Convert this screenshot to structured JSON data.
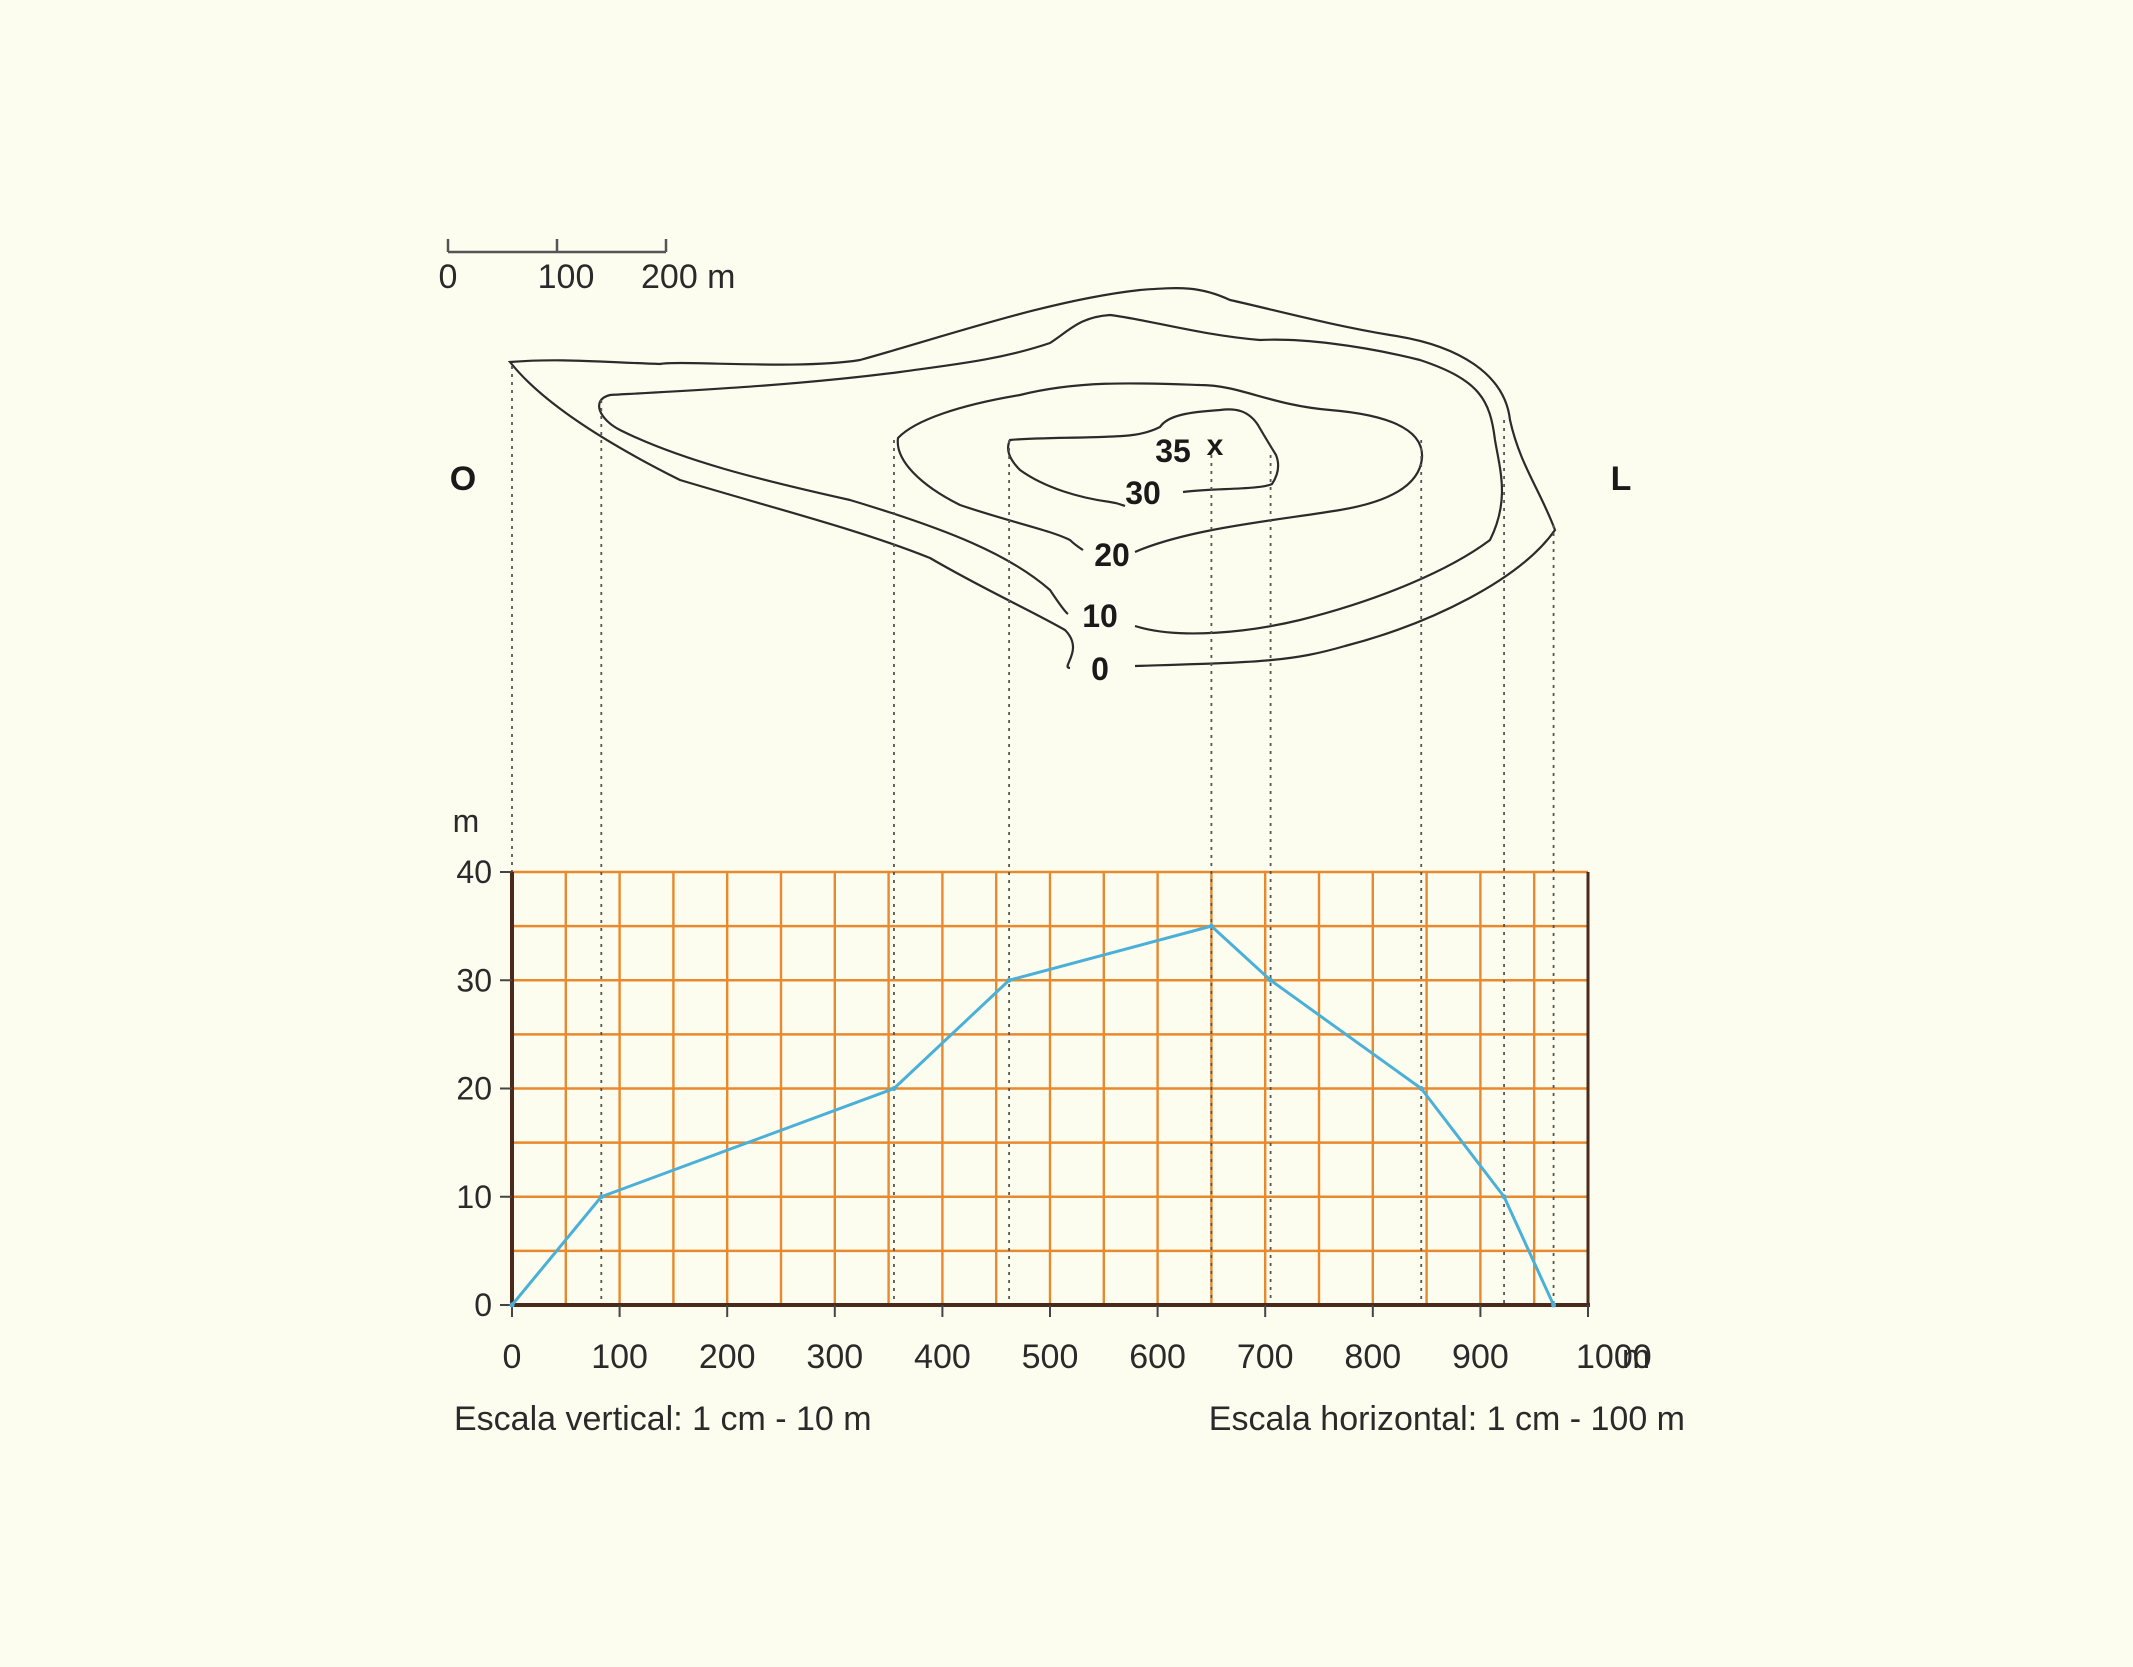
{
  "scale_bar": {
    "ticks": [
      "0",
      "100",
      "200 m"
    ]
  },
  "map": {
    "west_label": "O",
    "east_label": "L",
    "summit_label": "35",
    "summit_mark": "x",
    "contour_labels": [
      "30",
      "20",
      "10",
      "0"
    ]
  },
  "chart_data": {
    "type": "line",
    "title": "",
    "xlabel": "",
    "ylabel": "m",
    "x_unit": "m",
    "xlim": [
      0,
      1000
    ],
    "ylim": [
      0,
      40
    ],
    "x_ticks": [
      0,
      100,
      200,
      300,
      400,
      500,
      600,
      700,
      800,
      900,
      1000
    ],
    "x_tick_labels": [
      "0",
      "100",
      "200",
      "300",
      "400",
      "500",
      "600",
      "700",
      "800",
      "900",
      "1000"
    ],
    "y_ticks": [
      0,
      10,
      20,
      30,
      40
    ],
    "y_tick_labels": [
      "0",
      "10",
      "20",
      "30",
      "40"
    ],
    "grid": true,
    "series": [
      {
        "x": [
          0,
          83,
          355,
          462,
          650,
          705,
          845,
          922,
          968
        ],
        "y": [
          0,
          10,
          20,
          30,
          35,
          30,
          20,
          10,
          0
        ]
      }
    ]
  },
  "captions": {
    "vertical_scale": "Escala vertical: 1 cm - 10 m",
    "horizontal_scale": "Escala horizontal: 1 cm - 100 m"
  },
  "colors": {
    "background": "#fdfdef",
    "grid": "#e8892e",
    "profile_line": "#4ab0d8",
    "contour": "#2b2b2b",
    "axis": "#4a2a1a"
  }
}
